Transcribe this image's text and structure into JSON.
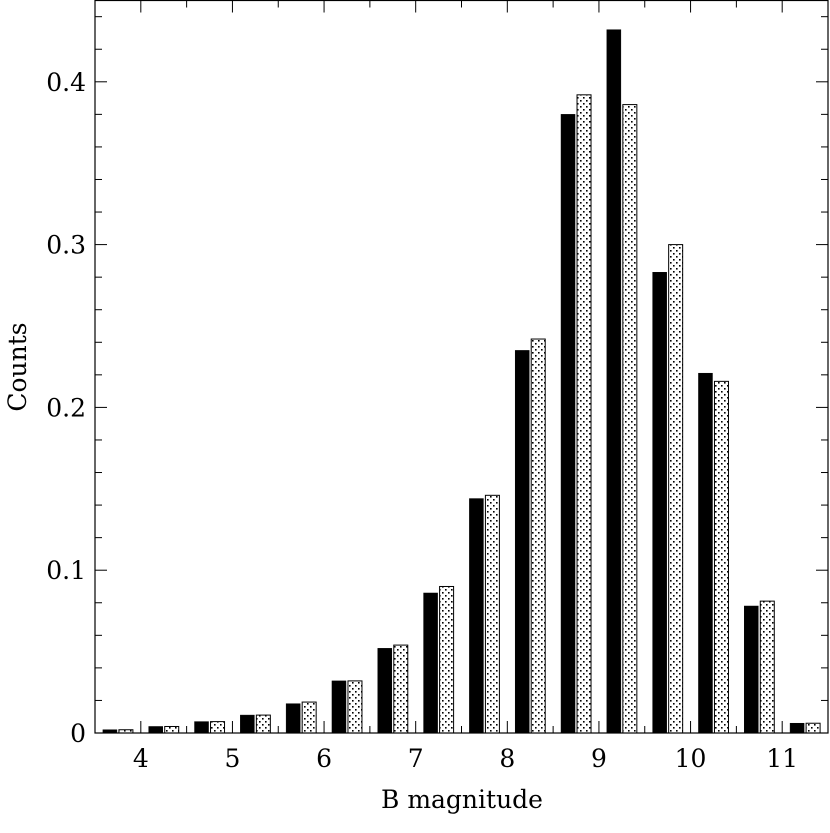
{
  "chart_data": {
    "type": "bar",
    "title": "",
    "xlabel": "B magnitude",
    "ylabel": "Counts",
    "xlim": [
      3.5,
      11.5
    ],
    "ylim": [
      0,
      0.45
    ],
    "xticks": [
      4,
      5,
      6,
      7,
      8,
      9,
      10,
      11
    ],
    "xtick_labels": [
      "4",
      "5",
      "6",
      "7",
      "8",
      "9",
      "10",
      "11"
    ],
    "yticks": [
      0,
      0.1,
      0.2,
      0.3,
      0.4
    ],
    "ytick_labels": [
      "0",
      "0.1",
      "0.2",
      "0.3",
      "0.4"
    ],
    "grid": false,
    "bin_centers": [
      3.75,
      4.25,
      4.75,
      5.25,
      5.75,
      6.25,
      6.75,
      7.25,
      7.75,
      8.25,
      8.75,
      9.25,
      9.75,
      10.25,
      10.75,
      11.25
    ],
    "series": [
      {
        "style": "solid-black",
        "color": "#000000",
        "values": [
          0.002,
          0.004,
          0.007,
          0.011,
          0.018,
          0.032,
          0.052,
          0.086,
          0.144,
          0.235,
          0.38,
          0.432,
          0.283,
          0.221,
          0.078,
          0.006
        ]
      },
      {
        "style": "dotted-hatch",
        "color": "#ffffff",
        "values": [
          0.002,
          0.004,
          0.007,
          0.011,
          0.019,
          0.032,
          0.054,
          0.09,
          0.146,
          0.242,
          0.392,
          0.386,
          0.3,
          0.216,
          0.081,
          0.006
        ]
      }
    ]
  }
}
